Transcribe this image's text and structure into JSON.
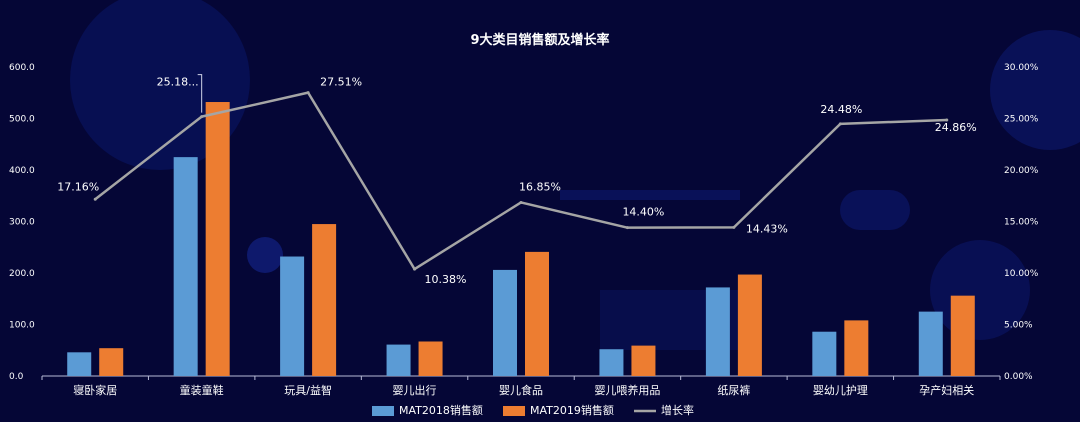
{
  "chart_data": {
    "type": "bar",
    "title": "9大类目销售额及增长率",
    "categories": [
      "寝卧家居",
      "童装童鞋",
      "玩具/益智",
      "婴儿出行",
      "婴儿食品",
      "婴儿喂养用品",
      "纸尿裤",
      "婴幼儿护理",
      "孕产妇相关"
    ],
    "series": [
      {
        "name": "MAT2018销售额",
        "kind": "bar",
        "axis": "left",
        "color": "#5b9bd5",
        "values": [
          46,
          425,
          232,
          61,
          206,
          52,
          172,
          86,
          125
        ]
      },
      {
        "name": "MAT2019销售额",
        "kind": "bar",
        "axis": "left",
        "color": "#ed7d31",
        "values": [
          54,
          532,
          295,
          67,
          241,
          59,
          197,
          108,
          156
        ]
      },
      {
        "name": "增长率",
        "kind": "line",
        "axis": "right",
        "color": "#a5a5a5",
        "values": [
          17.16,
          25.18,
          27.51,
          10.38,
          16.85,
          14.4,
          14.43,
          24.48,
          24.86
        ]
      }
    ],
    "line_labels": [
      "17.16%",
      "25.18...",
      "27.51%",
      "10.38%",
      "16.85%",
      "14.40%",
      "14.43%",
      "24.48%",
      "24.86%"
    ],
    "left_axis": {
      "min": 0,
      "max": 600,
      "step": 100,
      "tick_labels": [
        "0.0",
        "100.0",
        "200.0",
        "300.0",
        "400.0",
        "500.0",
        "600.0"
      ]
    },
    "right_axis": {
      "min": 0,
      "max": 30,
      "step": 5,
      "tick_labels": [
        "0.00%",
        "5.00%",
        "10.00%",
        "15.00%",
        "20.00%",
        "25.00%",
        "30.00%"
      ]
    },
    "grid": false,
    "legend_position": "bottom"
  }
}
